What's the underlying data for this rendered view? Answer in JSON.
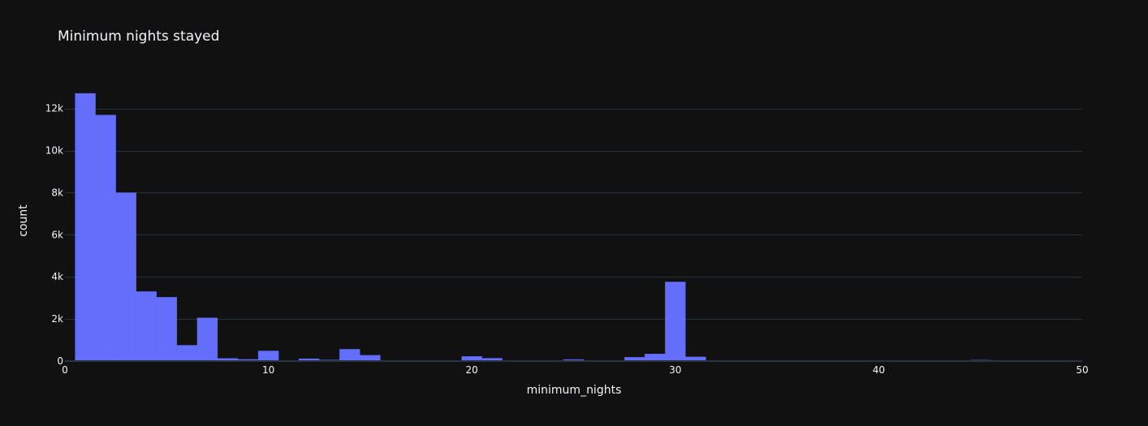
{
  "chart_data": {
    "type": "bar",
    "title": "Minimum nights stayed",
    "xlabel": "minimum_nights",
    "ylabel": "count",
    "xlim": [
      0,
      50
    ],
    "ylim": [
      0,
      13300
    ],
    "bin_width": 1,
    "bar_color": "#636efa",
    "background_color": "#111111",
    "grid_color": "#283442",
    "text_color": "#f2f5fa",
    "grid": true,
    "x_ticks": [
      0,
      10,
      20,
      30,
      40,
      50
    ],
    "x_tick_labels": [
      "0",
      "10",
      "20",
      "30",
      "40",
      "50"
    ],
    "y_ticks": [
      0,
      2000,
      4000,
      6000,
      8000,
      10000,
      12000
    ],
    "y_tick_labels": [
      "0",
      "2k",
      "4k",
      "6k",
      "8k",
      "10k",
      "12k"
    ],
    "bins": [
      {
        "x0": 0.5,
        "x1": 1.5,
        "value": 12720
      },
      {
        "x0": 1.5,
        "x1": 2.5,
        "value": 11690
      },
      {
        "x0": 2.5,
        "x1": 3.5,
        "value": 7999
      },
      {
        "x0": 3.5,
        "x1": 4.5,
        "value": 3303
      },
      {
        "x0": 4.5,
        "x1": 5.5,
        "value": 3034
      },
      {
        "x0": 5.5,
        "x1": 6.5,
        "value": 752
      },
      {
        "x0": 6.5,
        "x1": 7.5,
        "value": 2058
      },
      {
        "x0": 7.5,
        "x1": 8.5,
        "value": 130
      },
      {
        "x0": 8.5,
        "x1": 9.5,
        "value": 80
      },
      {
        "x0": 9.5,
        "x1": 10.5,
        "value": 483
      },
      {
        "x0": 10.5,
        "x1": 11.5,
        "value": 33
      },
      {
        "x0": 11.5,
        "x1": 12.5,
        "value": 112
      },
      {
        "x0": 12.5,
        "x1": 13.5,
        "value": 54
      },
      {
        "x0": 13.5,
        "x1": 14.5,
        "value": 562
      },
      {
        "x0": 14.5,
        "x1": 15.5,
        "value": 279
      },
      {
        "x0": 15.5,
        "x1": 16.5,
        "value": 19
      },
      {
        "x0": 16.5,
        "x1": 17.5,
        "value": 14
      },
      {
        "x0": 17.5,
        "x1": 18.5,
        "value": 28
      },
      {
        "x0": 18.5,
        "x1": 19.5,
        "value": 15
      },
      {
        "x0": 19.5,
        "x1": 20.5,
        "value": 223
      },
      {
        "x0": 20.5,
        "x1": 21.5,
        "value": 135
      },
      {
        "x0": 21.5,
        "x1": 22.5,
        "value": 13
      },
      {
        "x0": 22.5,
        "x1": 23.5,
        "value": 6
      },
      {
        "x0": 23.5,
        "x1": 24.5,
        "value": 6
      },
      {
        "x0": 24.5,
        "x1": 25.5,
        "value": 75
      },
      {
        "x0": 25.5,
        "x1": 26.5,
        "value": 14
      },
      {
        "x0": 26.5,
        "x1": 27.5,
        "value": 32
      },
      {
        "x0": 27.5,
        "x1": 28.5,
        "value": 180
      },
      {
        "x0": 28.5,
        "x1": 29.5,
        "value": 340
      },
      {
        "x0": 29.5,
        "x1": 30.5,
        "value": 3760
      },
      {
        "x0": 30.5,
        "x1": 31.5,
        "value": 200
      },
      {
        "x0": 31.5,
        "x1": 32.5,
        "value": 8
      },
      {
        "x0": 32.5,
        "x1": 33.5,
        "value": 6
      },
      {
        "x0": 33.5,
        "x1": 34.5,
        "value": 5
      },
      {
        "x0": 34.5,
        "x1": 35.5,
        "value": 15
      },
      {
        "x0": 35.5,
        "x1": 36.5,
        "value": 5
      },
      {
        "x0": 36.5,
        "x1": 37.5,
        "value": 4
      },
      {
        "x0": 37.5,
        "x1": 38.5,
        "value": 3
      },
      {
        "x0": 38.5,
        "x1": 39.5,
        "value": 3
      },
      {
        "x0": 39.5,
        "x1": 40.5,
        "value": 13
      },
      {
        "x0": 40.5,
        "x1": 41.5,
        "value": 4
      },
      {
        "x0": 41.5,
        "x1": 42.5,
        "value": 4
      },
      {
        "x0": 42.5,
        "x1": 43.5,
        "value": 3
      },
      {
        "x0": 43.5,
        "x1": 44.5,
        "value": 8
      },
      {
        "x0": 44.5,
        "x1": 45.5,
        "value": 45
      },
      {
        "x0": 45.5,
        "x1": 46.5,
        "value": 4
      },
      {
        "x0": 46.5,
        "x1": 47.5,
        "value": 3
      },
      {
        "x0": 47.5,
        "x1": 48.5,
        "value": 3
      },
      {
        "x0": 48.5,
        "x1": 49.5,
        "value": 4
      },
      {
        "x0": 49.5,
        "x1": 50,
        "value": 12
      }
    ]
  }
}
